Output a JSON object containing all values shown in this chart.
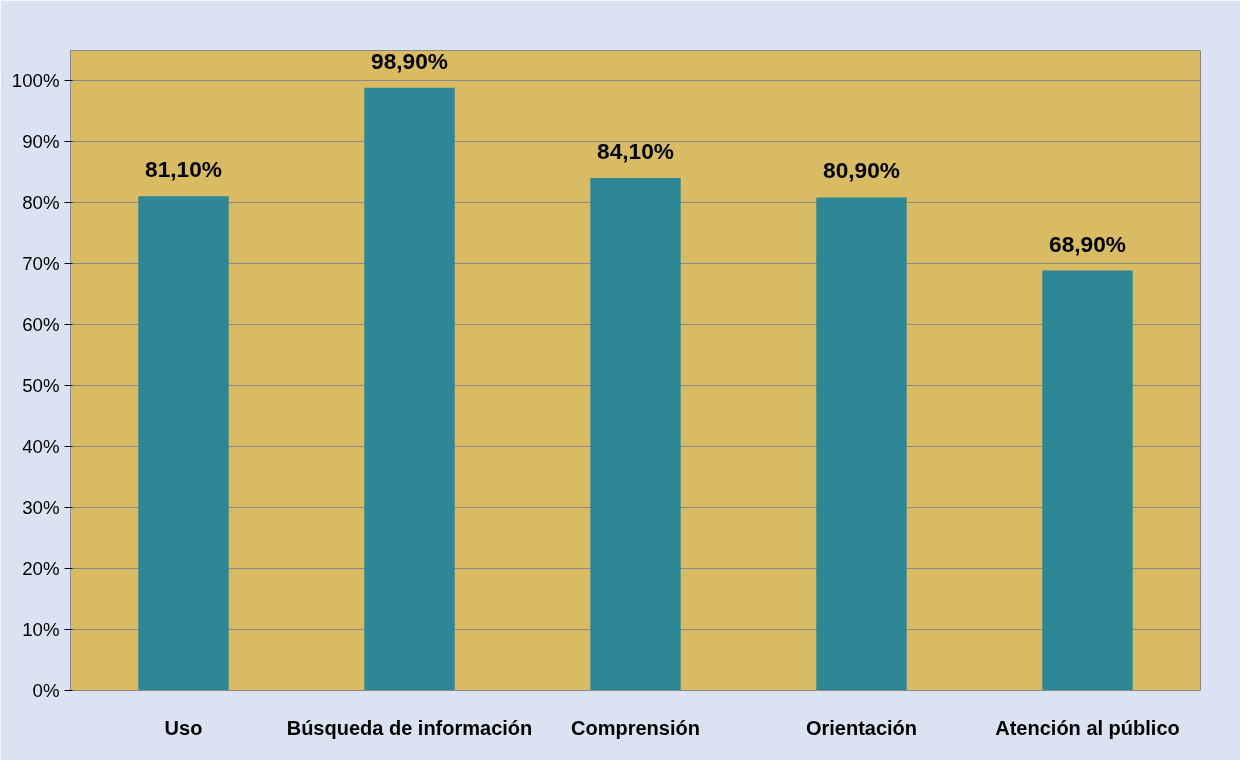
{
  "chart_data": {
    "type": "bar",
    "categories": [
      "Uso",
      "Búsqueda de información",
      "Comprensión",
      "Orientación",
      "Atención al público"
    ],
    "values": [
      81.1,
      98.9,
      84.1,
      80.9,
      68.9
    ],
    "value_labels": [
      "81,10%",
      "98,90%",
      "84,10%",
      "80,90%",
      "68,90%"
    ],
    "color": "#2e8795",
    "ylim": [
      0,
      105
    ],
    "yticks": [
      {
        "value": 0,
        "label": "0%"
      },
      {
        "value": 10,
        "label": "10%"
      },
      {
        "value": 20,
        "label": "20%"
      },
      {
        "value": 30,
        "label": "30%"
      },
      {
        "value": 40,
        "label": "40%"
      },
      {
        "value": 50,
        "label": "50%"
      },
      {
        "value": 60,
        "label": "60%"
      },
      {
        "value": 70,
        "label": "70%"
      },
      {
        "value": 80,
        "label": "80%"
      },
      {
        "value": 90,
        "label": "90%"
      },
      {
        "value": 100,
        "label": "100%"
      }
    ],
    "grid": "y"
  }
}
